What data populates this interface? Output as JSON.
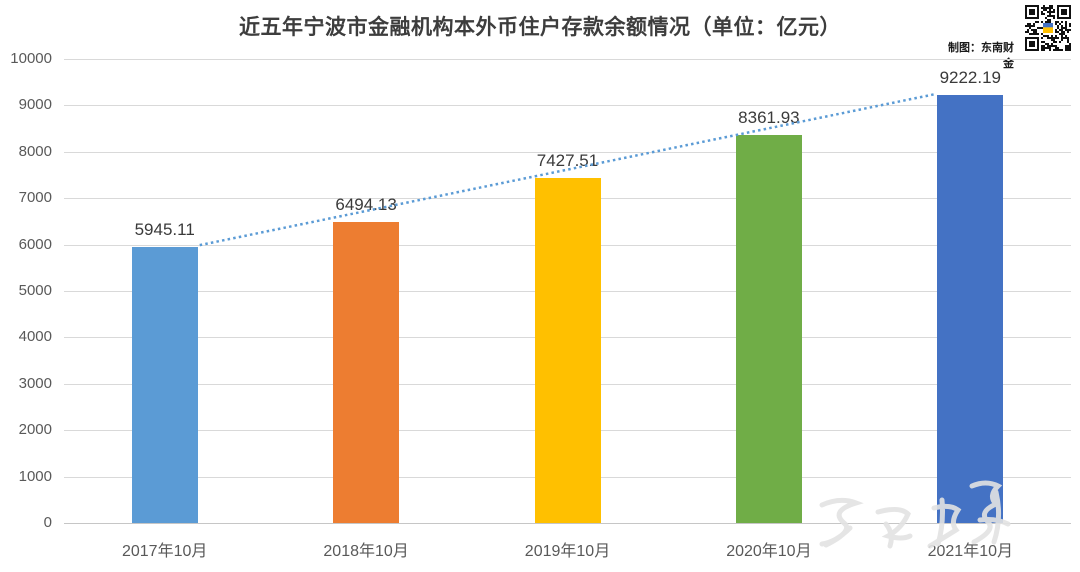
{
  "header": {
    "title": "近五年宁波市金融机构本外币住户存款余额情况（单位：亿元）",
    "credit": "制图：东南财金"
  },
  "icons": {
    "qr_code": "qr-code",
    "watermark": "script-watermark"
  },
  "chart_data": {
    "type": "bar",
    "title": "近五年宁波市金融机构本外币住户存款余额情况（单位：亿元）",
    "categories": [
      "2017年10月",
      "2018年10月",
      "2019年10月",
      "2020年10月",
      "2021年10月"
    ],
    "values": [
      5945.11,
      6494.13,
      7427.51,
      8361.93,
      9222.19
    ],
    "value_labels": [
      "5945.11",
      "6494.13",
      "7427.51",
      "8361.93",
      "9222.19"
    ],
    "bar_colors": [
      "#5b9bd5",
      "#ed7d31",
      "#ffc000",
      "#70ad47",
      "#4472c4"
    ],
    "yticks": [
      0,
      1000,
      2000,
      3000,
      4000,
      5000,
      6000,
      7000,
      8000,
      9000,
      10000
    ],
    "ylim": [
      0,
      10000
    ],
    "xlabel": "",
    "ylabel": "",
    "grid": true,
    "legend": false,
    "trendline": {
      "style": "dotted",
      "color": "#5b9bd5",
      "from_category": "2017年10月",
      "to_category": "2021年10月"
    },
    "colors": {
      "gridline": "#d9d9d9",
      "axis_line": "#c6c6c6",
      "axis_text": "#595959",
      "value_text": "#3a3a3a",
      "title_text": "#3d3d3d"
    }
  }
}
